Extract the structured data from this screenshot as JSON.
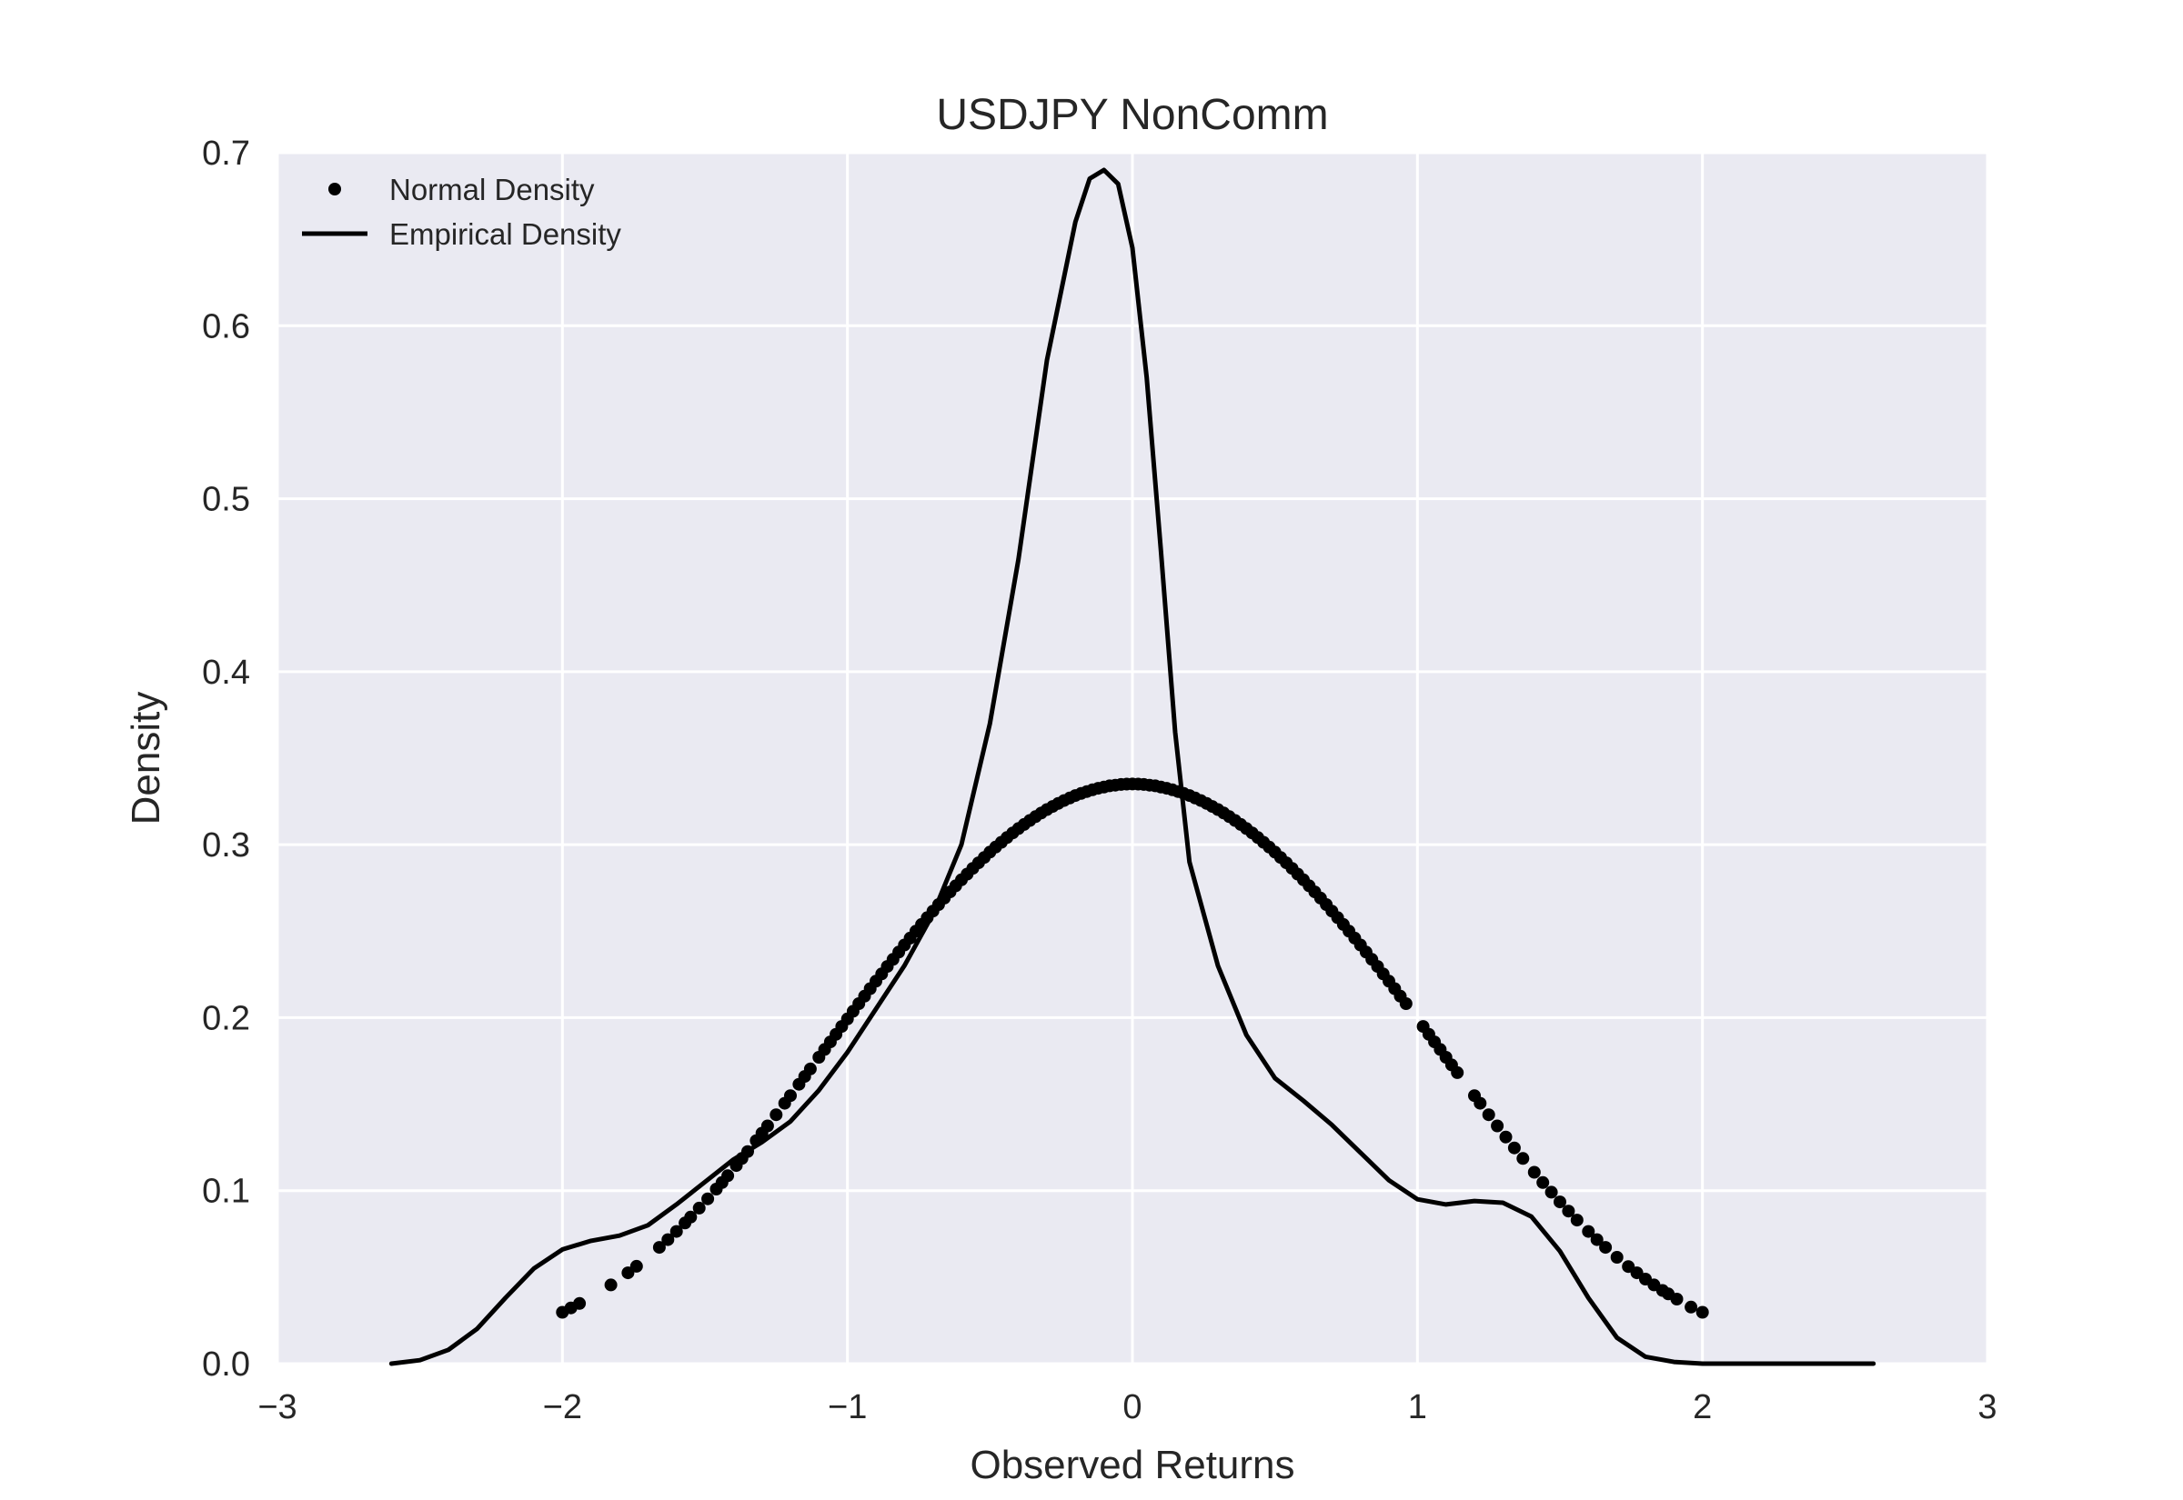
{
  "chart_data": {
    "type": "line",
    "title": "USDJPY NonComm",
    "xlabel": "Observed Returns",
    "ylabel": "Density",
    "xlim": [
      -3,
      3
    ],
    "ylim": [
      0,
      0.7
    ],
    "xticks": [
      -3,
      -2,
      -1,
      0,
      1,
      2,
      3
    ],
    "xtick_labels": [
      "−3",
      "−2",
      "−1",
      "0",
      "1",
      "2",
      "3"
    ],
    "yticks": [
      0.0,
      0.1,
      0.2,
      0.3,
      0.4,
      0.5,
      0.6,
      0.7
    ],
    "ytick_labels": [
      "0.0",
      "0.1",
      "0.2",
      "0.3",
      "0.4",
      "0.5",
      "0.6",
      "0.7"
    ],
    "grid": true,
    "legend_position": "top-left",
    "colors": {
      "plot_background": "#EAEAF2",
      "grid": "#FFFFFF",
      "series": "#000000",
      "text": "#262626"
    },
    "series": [
      {
        "name": "Normal Density",
        "style": "dots",
        "x": [
          -2.0,
          -1.97,
          -1.94,
          -1.83,
          -1.77,
          -1.74,
          -1.66,
          -1.63,
          -1.6,
          -1.57,
          -1.55,
          -1.52,
          -1.49,
          -1.46,
          -1.44,
          -1.42,
          -1.39,
          -1.37,
          -1.35,
          -1.32,
          -1.3,
          -1.28,
          -1.25,
          -1.22,
          -1.2,
          -1.17,
          -1.15,
          -1.13,
          -1.1,
          -1.08,
          -1.06,
          -1.04,
          -1.02,
          -1.0,
          -0.98,
          -0.96,
          -0.94,
          -0.92,
          -0.9,
          -0.88,
          -0.86,
          -0.84,
          -0.82,
          -0.8,
          -0.78,
          -0.76,
          -0.74,
          -0.72,
          -0.7,
          -0.68,
          -0.66,
          -0.64,
          -0.62,
          -0.6,
          -0.58,
          -0.56,
          -0.54,
          -0.52,
          -0.5,
          -0.48,
          -0.46,
          -0.44,
          -0.42,
          -0.4,
          -0.38,
          -0.36,
          -0.34,
          -0.32,
          -0.3,
          -0.28,
          -0.26,
          -0.24,
          -0.22,
          -0.2,
          -0.18,
          -0.16,
          -0.14,
          -0.12,
          -0.1,
          -0.08,
          -0.06,
          -0.04,
          -0.02,
          0.0,
          0.02,
          0.04,
          0.06,
          0.08,
          0.1,
          0.12,
          0.14,
          0.16,
          0.18,
          0.2,
          0.22,
          0.24,
          0.26,
          0.28,
          0.3,
          0.32,
          0.34,
          0.36,
          0.38,
          0.4,
          0.42,
          0.44,
          0.46,
          0.48,
          0.5,
          0.52,
          0.54,
          0.56,
          0.58,
          0.6,
          0.62,
          0.64,
          0.66,
          0.68,
          0.7,
          0.72,
          0.74,
          0.76,
          0.78,
          0.8,
          0.82,
          0.84,
          0.86,
          0.88,
          0.9,
          0.92,
          0.94,
          0.96,
          1.02,
          1.04,
          1.06,
          1.08,
          1.1,
          1.12,
          1.14,
          1.2,
          1.22,
          1.25,
          1.28,
          1.31,
          1.34,
          1.37,
          1.41,
          1.44,
          1.47,
          1.5,
          1.53,
          1.56,
          1.6,
          1.63,
          1.66,
          1.7,
          1.74,
          1.77,
          1.8,
          1.83,
          1.86,
          1.88,
          1.91,
          1.96,
          2.0
        ],
        "y": [
          0.0297,
          0.0322,
          0.0348,
          0.0455,
          0.0525,
          0.0563,
          0.0672,
          0.0717,
          0.0764,
          0.0813,
          0.0847,
          0.0899,
          0.0953,
          0.1009,
          0.1047,
          0.1086,
          0.1145,
          0.1186,
          0.1226,
          0.1289,
          0.1332,
          0.1374,
          0.1439,
          0.1505,
          0.1549,
          0.1615,
          0.166,
          0.1704,
          0.1771,
          0.1816,
          0.186,
          0.1904,
          0.1949,
          0.1993,
          0.2037,
          0.2081,
          0.2124,
          0.2168,
          0.2211,
          0.2253,
          0.2296,
          0.2337,
          0.2379,
          0.242,
          0.246,
          0.25,
          0.2539,
          0.2578,
          0.2616,
          0.2654,
          0.2691,
          0.2727,
          0.2762,
          0.2797,
          0.283,
          0.2863,
          0.2895,
          0.2926,
          0.2957,
          0.2986,
          0.3014,
          0.3041,
          0.3068,
          0.3093,
          0.3117,
          0.314,
          0.3162,
          0.3183,
          0.3203,
          0.3221,
          0.3239,
          0.3255,
          0.327,
          0.3284,
          0.3296,
          0.3307,
          0.3317,
          0.3326,
          0.3333,
          0.334,
          0.3344,
          0.3348,
          0.335,
          0.3351,
          0.335,
          0.3348,
          0.3344,
          0.334,
          0.3333,
          0.3326,
          0.3317,
          0.3307,
          0.3296,
          0.3284,
          0.327,
          0.3255,
          0.3239,
          0.3221,
          0.3203,
          0.3183,
          0.3162,
          0.314,
          0.3117,
          0.3093,
          0.3068,
          0.3041,
          0.3014,
          0.2986,
          0.2957,
          0.2926,
          0.2895,
          0.2863,
          0.283,
          0.2797,
          0.2762,
          0.2727,
          0.2691,
          0.2654,
          0.2616,
          0.2578,
          0.2539,
          0.25,
          0.246,
          0.242,
          0.2379,
          0.2337,
          0.2296,
          0.2253,
          0.2211,
          0.2168,
          0.2124,
          0.2081,
          0.1949,
          0.1904,
          0.186,
          0.1816,
          0.1771,
          0.1727,
          0.1682,
          0.1549,
          0.1505,
          0.1439,
          0.1374,
          0.131,
          0.1247,
          0.1186,
          0.1106,
          0.1047,
          0.0991,
          0.0935,
          0.0882,
          0.083,
          0.0764,
          0.0717,
          0.0672,
          0.0615,
          0.0561,
          0.0525,
          0.0489,
          0.0455,
          0.0423,
          0.0403,
          0.0373,
          0.0327,
          0.0297
        ]
      },
      {
        "name": "Empirical Density",
        "style": "line",
        "x": [
          -2.6,
          -2.5,
          -2.4,
          -2.3,
          -2.2,
          -2.1,
          -2.0,
          -1.9,
          -1.8,
          -1.7,
          -1.6,
          -1.5,
          -1.4,
          -1.3,
          -1.2,
          -1.1,
          -1.0,
          -0.9,
          -0.8,
          -0.7,
          -0.6,
          -0.5,
          -0.4,
          -0.3,
          -0.2,
          -0.15,
          -0.1,
          -0.05,
          0.0,
          0.05,
          0.1,
          0.15,
          0.2,
          0.3,
          0.4,
          0.5,
          0.6,
          0.7,
          0.8,
          0.9,
          1.0,
          1.1,
          1.2,
          1.3,
          1.4,
          1.5,
          1.6,
          1.7,
          1.8,
          1.9,
          2.0,
          2.1,
          2.2,
          2.3,
          2.4,
          2.5,
          2.6
        ],
        "y": [
          0.0,
          0.002,
          0.008,
          0.02,
          0.038,
          0.055,
          0.066,
          0.071,
          0.074,
          0.08,
          0.092,
          0.105,
          0.118,
          0.128,
          0.14,
          0.158,
          0.18,
          0.205,
          0.23,
          0.26,
          0.3,
          0.37,
          0.465,
          0.58,
          0.66,
          0.685,
          0.69,
          0.682,
          0.645,
          0.57,
          0.47,
          0.365,
          0.29,
          0.23,
          0.19,
          0.165,
          0.152,
          0.138,
          0.122,
          0.106,
          0.095,
          0.092,
          0.094,
          0.093,
          0.085,
          0.065,
          0.038,
          0.015,
          0.004,
          0.001,
          0.0,
          0.0,
          0.0,
          0.0,
          0.0,
          0.0,
          0.0
        ]
      }
    ]
  }
}
